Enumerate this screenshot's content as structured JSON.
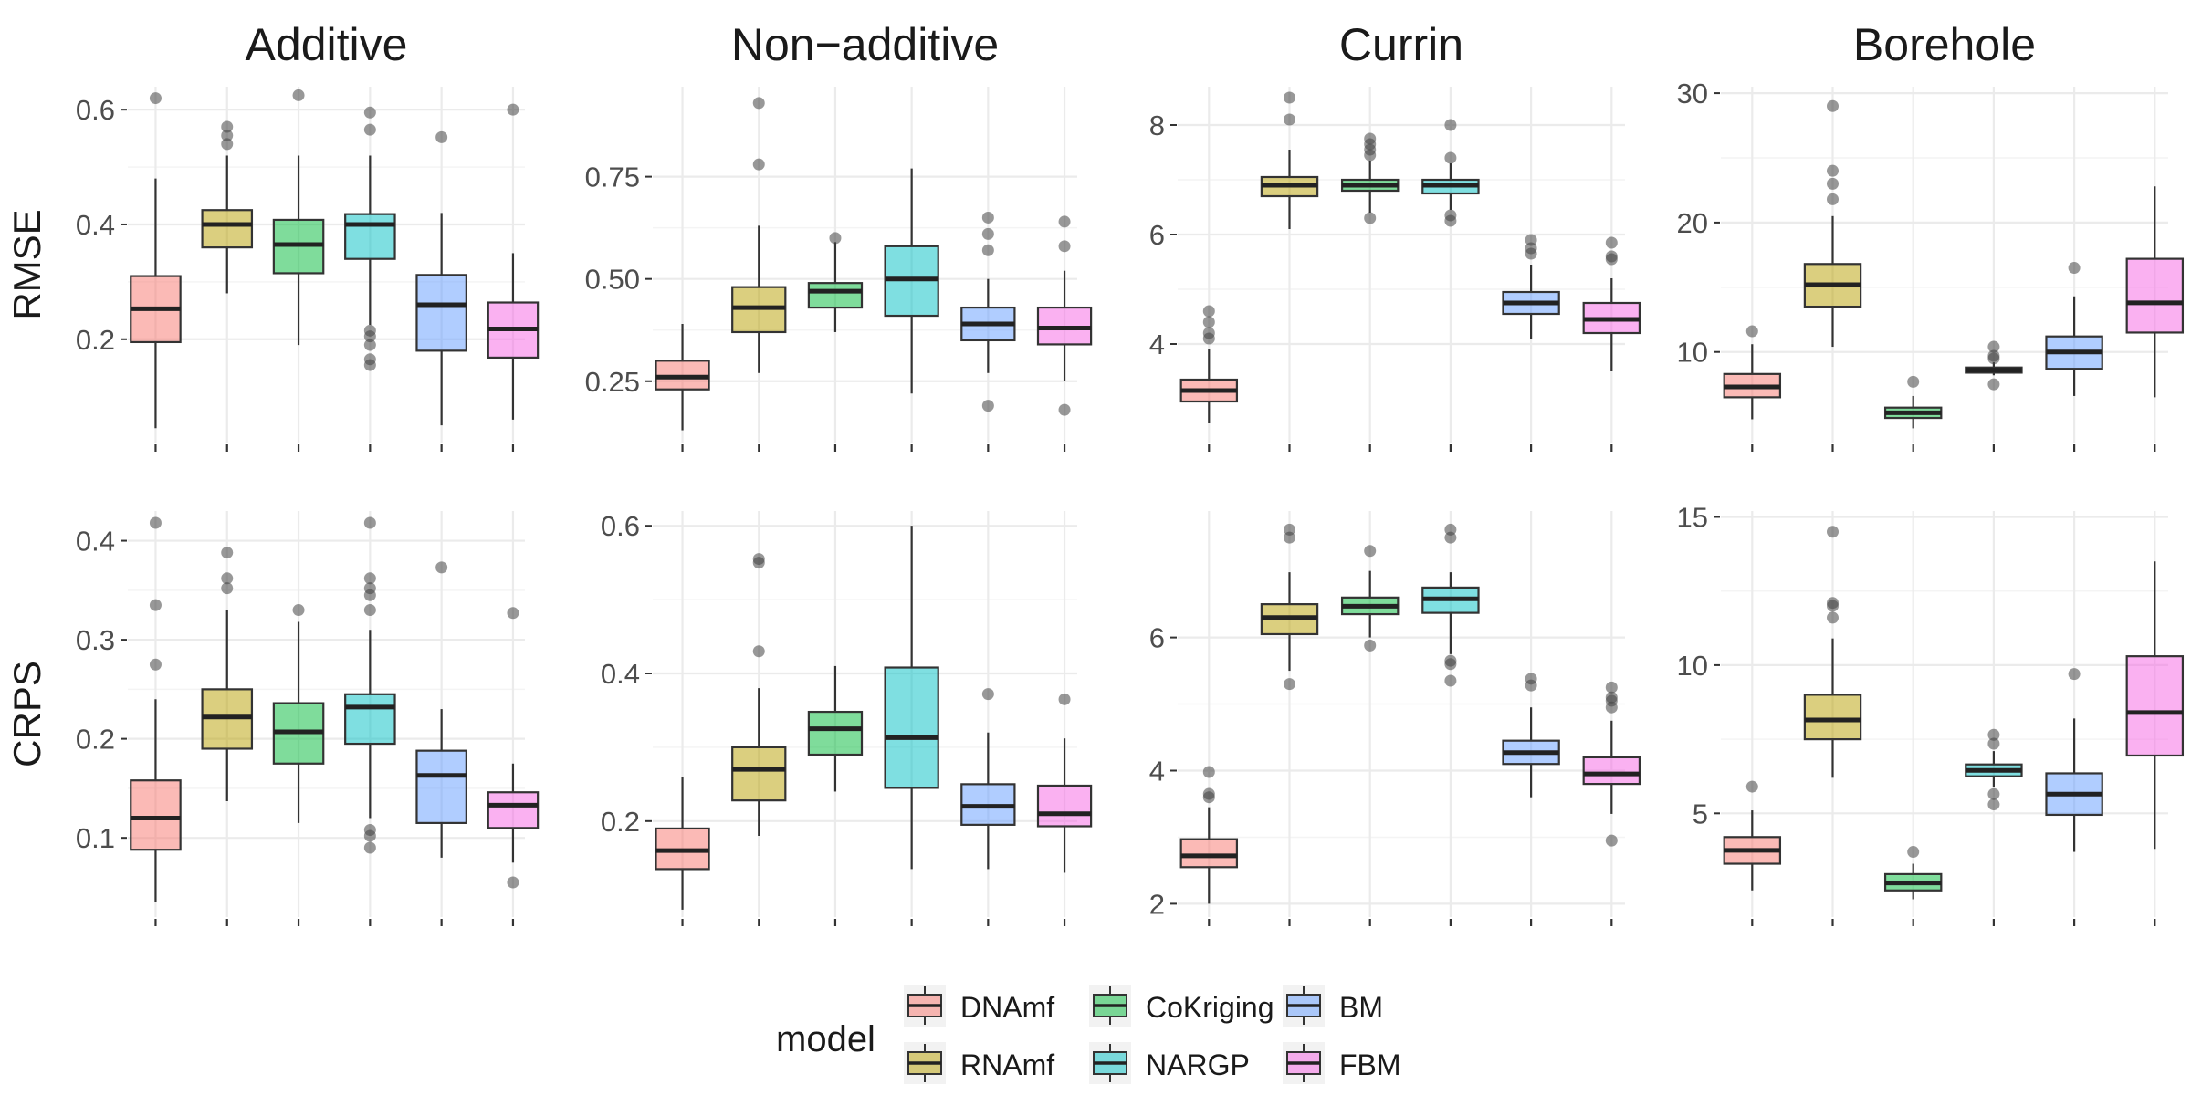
{
  "colors": {
    "DNAmf": "#F8766D",
    "RNAmf": "#B79F00",
    "CoKriging": "#00BA38",
    "NARGP": "#00BFC4",
    "BM": "#619CFF",
    "FBM": "#F564E3",
    "grid": "#ebebeb",
    "box_line": "#333333",
    "tick_text": "#4d4d4d"
  },
  "legend": {
    "title": "model",
    "entries": [
      {
        "label": "DNAmf",
        "color_key": "DNAmf"
      },
      {
        "label": "RNAmf",
        "color_key": "RNAmf"
      },
      {
        "label": "CoKriging",
        "color_key": "CoKriging"
      },
      {
        "label": "NARGP",
        "color_key": "NARGP"
      },
      {
        "label": "BM",
        "color_key": "BM"
      },
      {
        "label": "FBM",
        "color_key": "FBM"
      }
    ]
  },
  "chart_data": {
    "type": "box",
    "models": [
      "DNAmf",
      "RNAmf",
      "CoKriging",
      "NARGP",
      "BM",
      "FBM"
    ],
    "columns": [
      "Additive",
      "Non−additive",
      "Currin",
      "Borehole"
    ],
    "rows": [
      "RMSE",
      "CRPS"
    ],
    "grid": true,
    "legend_position": "bottom",
    "panels": [
      {
        "row": "RMSE",
        "column": "Additive",
        "ylim": [
          0.02,
          0.64
        ],
        "yticks": [
          0.2,
          0.4,
          0.6
        ],
        "ytick_labels": [
          "0.2",
          "0.4",
          "0.6"
        ],
        "boxes": [
          {
            "model": "DNAmf",
            "min": 0.045,
            "q1": 0.195,
            "median": 0.253,
            "q3": 0.31,
            "max": 0.48,
            "outliers": [
              0.62
            ]
          },
          {
            "model": "RNAmf",
            "min": 0.28,
            "q1": 0.36,
            "median": 0.4,
            "q3": 0.425,
            "max": 0.52,
            "outliers": [
              0.54,
              0.555,
              0.57
            ]
          },
          {
            "model": "CoKriging",
            "min": 0.19,
            "q1": 0.315,
            "median": 0.365,
            "q3": 0.408,
            "max": 0.52,
            "outliers": [
              0.625
            ]
          },
          {
            "model": "NARGP",
            "min": 0.225,
            "q1": 0.34,
            "median": 0.4,
            "q3": 0.418,
            "max": 0.52,
            "outliers": [
              0.155,
              0.165,
              0.19,
              0.205,
              0.215,
              0.565,
              0.595
            ]
          },
          {
            "model": "BM",
            "min": 0.05,
            "q1": 0.18,
            "median": 0.26,
            "q3": 0.312,
            "max": 0.42,
            "outliers": [
              0.552
            ]
          },
          {
            "model": "FBM",
            "min": 0.06,
            "q1": 0.168,
            "median": 0.218,
            "q3": 0.264,
            "max": 0.35,
            "outliers": [
              0.6
            ]
          }
        ]
      },
      {
        "row": "RMSE",
        "column": "Non−additive",
        "ylim": [
          0.1,
          0.97
        ],
        "yticks": [
          0.25,
          0.5,
          0.75
        ],
        "ytick_labels": [
          "0.25",
          "0.50",
          "0.75"
        ],
        "boxes": [
          {
            "model": "DNAmf",
            "min": 0.13,
            "q1": 0.23,
            "median": 0.26,
            "q3": 0.3,
            "max": 0.39,
            "outliers": []
          },
          {
            "model": "RNAmf",
            "min": 0.27,
            "q1": 0.37,
            "median": 0.43,
            "q3": 0.48,
            "max": 0.63,
            "outliers": [
              0.78,
              0.93
            ]
          },
          {
            "model": "CoKriging",
            "min": 0.37,
            "q1": 0.43,
            "median": 0.47,
            "q3": 0.49,
            "max": 0.59,
            "outliers": [
              0.6
            ]
          },
          {
            "model": "NARGP",
            "min": 0.22,
            "q1": 0.41,
            "median": 0.5,
            "q3": 0.58,
            "max": 0.77,
            "outliers": []
          },
          {
            "model": "BM",
            "min": 0.27,
            "q1": 0.35,
            "median": 0.39,
            "q3": 0.43,
            "max": 0.5,
            "outliers": [
              0.19,
              0.57,
              0.61,
              0.65
            ]
          },
          {
            "model": "FBM",
            "min": 0.25,
            "q1": 0.34,
            "median": 0.38,
            "q3": 0.43,
            "max": 0.52,
            "outliers": [
              0.18,
              0.58,
              0.64
            ]
          }
        ]
      },
      {
        "row": "RMSE",
        "column": "Currin",
        "ylim": [
          2.2,
          8.7
        ],
        "yticks": [
          4,
          6,
          8
        ],
        "ytick_labels": [
          "4",
          "6",
          "8"
        ],
        "boxes": [
          {
            "model": "DNAmf",
            "min": 2.55,
            "q1": 2.95,
            "median": 3.15,
            "q3": 3.35,
            "max": 3.9,
            "outliers": [
              4.1,
              4.2,
              4.4,
              4.6
            ]
          },
          {
            "model": "RNAmf",
            "min": 6.1,
            "q1": 6.7,
            "median": 6.9,
            "q3": 7.05,
            "max": 7.55,
            "outliers": [
              8.1,
              8.5
            ]
          },
          {
            "model": "CoKriging",
            "min": 6.4,
            "q1": 6.8,
            "median": 6.9,
            "q3": 7.0,
            "max": 7.35,
            "outliers": [
              6.3,
              7.45,
              7.55,
              7.65,
              7.75
            ]
          },
          {
            "model": "NARGP",
            "min": 6.45,
            "q1": 6.75,
            "median": 6.9,
            "q3": 7.0,
            "max": 7.3,
            "outliers": [
              6.25,
              6.35,
              7.4,
              8.0
            ]
          },
          {
            "model": "BM",
            "min": 4.1,
            "q1": 4.55,
            "median": 4.75,
            "q3": 4.95,
            "max": 5.45,
            "outliers": [
              5.65,
              5.75,
              5.9
            ]
          },
          {
            "model": "FBM",
            "min": 3.5,
            "q1": 4.2,
            "median": 4.45,
            "q3": 4.75,
            "max": 5.2,
            "outliers": [
              5.55,
              5.6,
              5.85
            ]
          }
        ]
      },
      {
        "row": "RMSE",
        "column": "Borehole",
        "ylim": [
          3,
          30.5
        ],
        "yticks": [
          10,
          20,
          30
        ],
        "ytick_labels": [
          "10",
          "20",
          "30"
        ],
        "boxes": [
          {
            "model": "DNAmf",
            "min": 4.8,
            "q1": 6.5,
            "median": 7.3,
            "q3": 8.3,
            "max": 10.6,
            "outliers": [
              11.6
            ]
          },
          {
            "model": "RNAmf",
            "min": 10.4,
            "q1": 13.5,
            "median": 15.2,
            "q3": 16.8,
            "max": 20.5,
            "outliers": [
              21.8,
              23.0,
              24.0,
              29.0
            ]
          },
          {
            "model": "CoKriging",
            "min": 4.1,
            "q1": 4.9,
            "median": 5.3,
            "q3": 5.7,
            "max": 6.6,
            "outliers": [
              7.7
            ]
          },
          {
            "model": "NARGP",
            "min": 8.2,
            "q1": 8.4,
            "median": 8.6,
            "q3": 8.8,
            "max": 9.2,
            "outliers": [
              7.5,
              9.5,
              9.7,
              10.4
            ]
          },
          {
            "model": "BM",
            "min": 6.6,
            "q1": 8.7,
            "median": 10.0,
            "q3": 11.2,
            "max": 14.3,
            "outliers": [
              16.5
            ]
          },
          {
            "model": "FBM",
            "min": 6.5,
            "q1": 11.5,
            "median": 13.8,
            "q3": 17.2,
            "max": 22.8,
            "outliers": []
          }
        ]
      },
      {
        "row": "CRPS",
        "column": "Additive",
        "ylim": [
          0.02,
          0.43
        ],
        "yticks": [
          0.1,
          0.2,
          0.3,
          0.4
        ],
        "ytick_labels": [
          "0.1",
          "0.2",
          "0.3",
          "0.4"
        ],
        "boxes": [
          {
            "model": "DNAmf",
            "min": 0.035,
            "q1": 0.088,
            "median": 0.12,
            "q3": 0.158,
            "max": 0.24,
            "outliers": [
              0.275,
              0.335,
              0.418
            ]
          },
          {
            "model": "RNAmf",
            "min": 0.137,
            "q1": 0.19,
            "median": 0.222,
            "q3": 0.25,
            "max": 0.33,
            "outliers": [
              0.352,
              0.362,
              0.388
            ]
          },
          {
            "model": "CoKriging",
            "min": 0.115,
            "q1": 0.175,
            "median": 0.207,
            "q3": 0.236,
            "max": 0.318,
            "outliers": [
              0.33
            ]
          },
          {
            "model": "NARGP",
            "min": 0.12,
            "q1": 0.195,
            "median": 0.232,
            "q3": 0.245,
            "max": 0.31,
            "outliers": [
              0.09,
              0.102,
              0.108,
              0.33,
              0.345,
              0.352,
              0.362,
              0.418
            ]
          },
          {
            "model": "BM",
            "min": 0.08,
            "q1": 0.115,
            "median": 0.163,
            "q3": 0.188,
            "max": 0.23,
            "outliers": [
              0.373
            ]
          },
          {
            "model": "FBM",
            "min": 0.075,
            "q1": 0.11,
            "median": 0.133,
            "q3": 0.146,
            "max": 0.175,
            "outliers": [
              0.055,
              0.327
            ]
          }
        ]
      },
      {
        "row": "CRPS",
        "column": "Non−additive",
        "ylim": [
          0.07,
          0.62
        ],
        "yticks": [
          0.2,
          0.4,
          0.6
        ],
        "ytick_labels": [
          "0.2",
          "0.4",
          "0.6"
        ],
        "boxes": [
          {
            "model": "DNAmf",
            "min": 0.08,
            "q1": 0.135,
            "median": 0.16,
            "q3": 0.19,
            "max": 0.26,
            "outliers": []
          },
          {
            "model": "RNAmf",
            "min": 0.18,
            "q1": 0.228,
            "median": 0.27,
            "q3": 0.3,
            "max": 0.38,
            "outliers": [
              0.43,
              0.55,
              0.555
            ]
          },
          {
            "model": "CoKriging",
            "min": 0.24,
            "q1": 0.29,
            "median": 0.325,
            "q3": 0.348,
            "max": 0.41,
            "outliers": []
          },
          {
            "model": "NARGP",
            "min": 0.135,
            "q1": 0.245,
            "median": 0.313,
            "q3": 0.408,
            "max": 0.6,
            "outliers": []
          },
          {
            "model": "BM",
            "min": 0.135,
            "q1": 0.195,
            "median": 0.22,
            "q3": 0.25,
            "max": 0.32,
            "outliers": [
              0.372
            ]
          },
          {
            "model": "FBM",
            "min": 0.13,
            "q1": 0.193,
            "median": 0.21,
            "q3": 0.248,
            "max": 0.312,
            "outliers": [
              0.365
            ]
          }
        ]
      },
      {
        "row": "CRPS",
        "column": "Currin",
        "ylim": [
          1.8,
          7.9
        ],
        "yticks": [
          2,
          4,
          6
        ],
        "ytick_labels": [
          "2",
          "4",
          "6"
        ],
        "boxes": [
          {
            "model": "DNAmf",
            "min": 2.0,
            "q1": 2.55,
            "median": 2.72,
            "q3": 2.97,
            "max": 3.45,
            "outliers": [
              3.6,
              3.65,
              3.98
            ]
          },
          {
            "model": "RNAmf",
            "min": 5.5,
            "q1": 6.05,
            "median": 6.3,
            "q3": 6.5,
            "max": 6.98,
            "outliers": [
              5.3,
              7.5,
              7.62
            ]
          },
          {
            "model": "CoKriging",
            "min": 6.0,
            "q1": 6.35,
            "median": 6.47,
            "q3": 6.6,
            "max": 7.0,
            "outliers": [
              5.88,
              7.3
            ]
          },
          {
            "model": "NARGP",
            "min": 5.75,
            "q1": 6.37,
            "median": 6.58,
            "q3": 6.75,
            "max": 6.98,
            "outliers": [
              5.35,
              5.6,
              5.65,
              7.5,
              7.62
            ]
          },
          {
            "model": "BM",
            "min": 3.6,
            "q1": 4.1,
            "median": 4.27,
            "q3": 4.45,
            "max": 4.95,
            "outliers": [
              5.28,
              5.38
            ]
          },
          {
            "model": "FBM",
            "min": 3.35,
            "q1": 3.8,
            "median": 3.95,
            "q3": 4.2,
            "max": 4.75,
            "outliers": [
              2.95,
              4.95,
              5.05,
              5.1,
              5.25
            ]
          }
        ]
      },
      {
        "row": "CRPS",
        "column": "Borehole",
        "ylim": [
          1.5,
          15.2
        ],
        "yticks": [
          5,
          10,
          15
        ],
        "ytick_labels": [
          "5",
          "10",
          "15"
        ],
        "boxes": [
          {
            "model": "DNAmf",
            "min": 2.4,
            "q1": 3.3,
            "median": 3.75,
            "q3": 4.2,
            "max": 5.1,
            "outliers": [
              5.9
            ]
          },
          {
            "model": "RNAmf",
            "min": 6.2,
            "q1": 7.5,
            "median": 8.15,
            "q3": 9.0,
            "max": 10.9,
            "outliers": [
              11.6,
              12.0,
              12.1,
              14.5
            ]
          },
          {
            "model": "CoKriging",
            "min": 2.1,
            "q1": 2.4,
            "median": 2.65,
            "q3": 2.95,
            "max": 3.3,
            "outliers": [
              3.7
            ]
          },
          {
            "model": "NARGP",
            "min": 5.9,
            "q1": 6.25,
            "median": 6.45,
            "q3": 6.65,
            "max": 7.1,
            "outliers": [
              5.3,
              5.65,
              7.35,
              7.65
            ]
          },
          {
            "model": "BM",
            "min": 3.7,
            "q1": 4.95,
            "median": 5.65,
            "q3": 6.35,
            "max": 8.2,
            "outliers": [
              9.7
            ]
          },
          {
            "model": "FBM",
            "min": 3.8,
            "q1": 6.95,
            "median": 8.4,
            "q3": 10.3,
            "max": 13.5,
            "outliers": []
          }
        ]
      }
    ]
  }
}
